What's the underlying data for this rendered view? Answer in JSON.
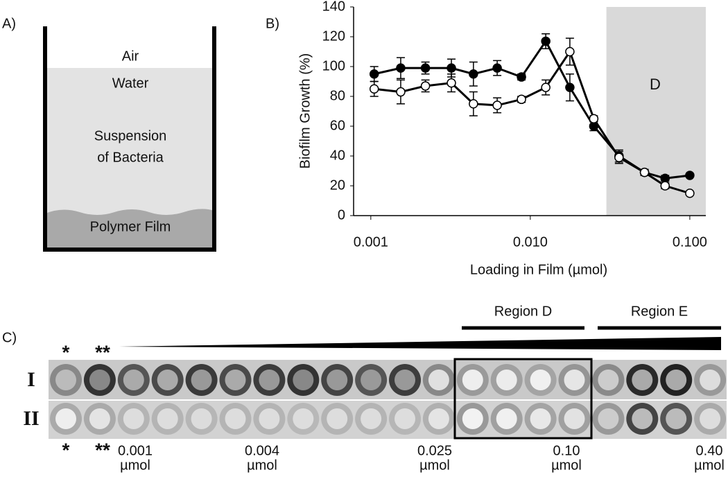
{
  "panel_labels": {
    "a": "A)",
    "b": "B)",
    "c": "C)"
  },
  "diagram": {
    "air": "Air",
    "water": "Water",
    "suspension": [
      "Suspension",
      "of Bacteria"
    ],
    "film": "Polymer Film"
  },
  "chart_data": {
    "type": "line",
    "x_label": "Loading in Film (µmol)",
    "y_label": "Biofilm Growth (%)",
    "log_x": true,
    "xlim": [
      0.00078,
      0.126
    ],
    "ylim": [
      0,
      140
    ],
    "xticks": [
      0.001,
      {
        "value": 0.01,
        "label": "0.010"
      },
      {
        "value": 0.1,
        "label": "0.100"
      }
    ],
    "yticks": [
      0,
      20,
      40,
      60,
      80,
      100,
      120,
      140
    ],
    "x": [
      0.00105,
      0.00154,
      0.0022,
      0.0032,
      0.0044,
      0.0062,
      0.0088,
      0.0125,
      0.0177,
      0.025,
      0.036,
      0.052,
      0.07,
      0.1
    ],
    "series": [
      {
        "color": "#000000",
        "marker": "filled",
        "values": [
          95,
          99,
          99,
          99,
          95,
          99,
          93,
          117,
          86,
          60,
          40,
          29,
          25,
          27
        ],
        "errors": [
          5,
          7,
          4,
          6,
          8,
          5,
          2,
          5,
          9,
          3,
          4,
          2,
          2,
          1
        ]
      },
      {
        "color": "#000000",
        "marker": "open",
        "values": [
          85,
          83,
          87,
          89,
          75,
          74,
          78,
          86,
          110,
          65,
          39,
          29,
          20,
          15
        ],
        "errors": [
          5,
          8,
          4,
          6,
          8,
          5,
          2,
          5,
          9,
          2,
          4,
          2,
          2,
          1
        ]
      }
    ],
    "shaded_region": {
      "xlim": [
        0.03,
        0.126
      ],
      "color": "#d9d9d9",
      "label": "D"
    }
  },
  "plate": {
    "regions": [
      "Region D",
      "Region E"
    ],
    "rows": [
      "I",
      "II"
    ],
    "top_marks": [
      "*",
      "**"
    ],
    "bottom_labels": [
      [
        "*"
      ],
      [
        "**"
      ],
      [
        "0.001",
        "µmol"
      ],
      [
        "0.004",
        "µmol"
      ],
      [
        "0.025",
        "µmol"
      ],
      [
        "0.10",
        "µmol"
      ],
      [
        "0.40",
        "µmol"
      ]
    ]
  }
}
